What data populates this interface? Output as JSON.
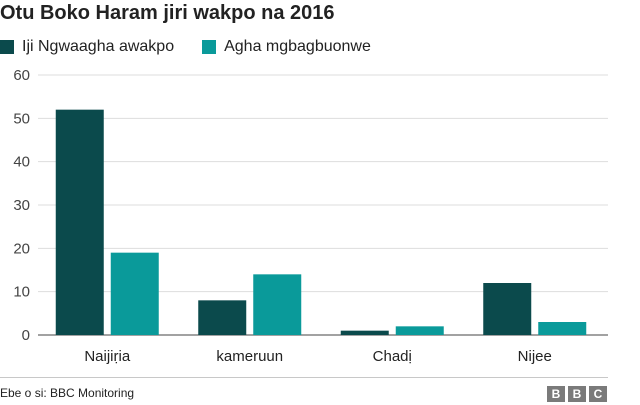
{
  "chart_data": {
    "type": "bar",
    "title": "Otu Boko Haram jiri wakpo na 2016",
    "categories": [
      "Naijiṛia",
      "kameruun",
      "Chadị",
      "Nijee"
    ],
    "series": [
      {
        "name": "Iji Ngwaagha awakpo",
        "color": "#0b4a4c",
        "values": [
          52,
          8,
          1,
          12
        ]
      },
      {
        "name": "Agha mgbagbuonwe",
        "color": "#0a9a9a",
        "values": [
          19,
          14,
          2,
          3
        ]
      }
    ],
    "ylim": [
      0,
      60
    ],
    "yticks": [
      0,
      10,
      20,
      30,
      40,
      50,
      60
    ],
    "grid": true,
    "legend_position": "top-left",
    "xlabel": "",
    "ylabel": ""
  },
  "footer": {
    "source": "Ebe o si: BBC Monitoring",
    "logo_letters": [
      "B",
      "B",
      "C"
    ]
  }
}
